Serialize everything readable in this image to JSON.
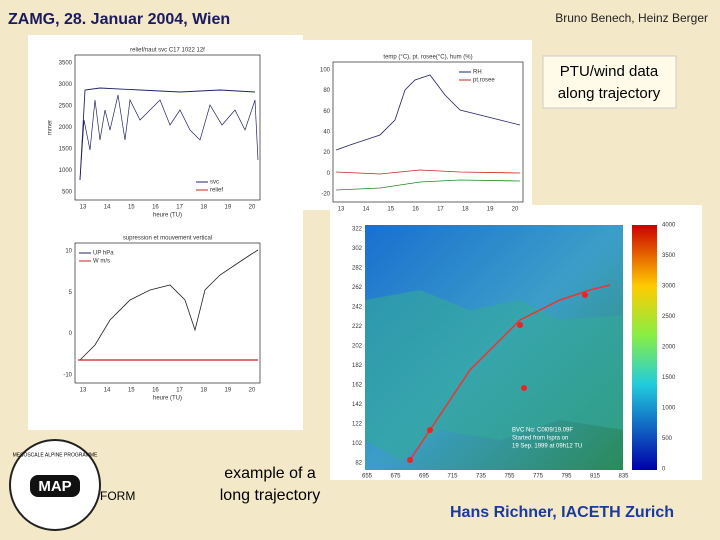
{
  "header": {
    "title": "ZAMG, 28. Januar 2004, Wien",
    "authors": "Bruno Benech, Heinz Berger"
  },
  "callout": {
    "line1": "PTU/wind data",
    "line2": "along trajectory"
  },
  "caption": {
    "line1": "example of a",
    "line2": "long trajectory"
  },
  "logo": {
    "label": "MAP",
    "ring": "MESOSCALE ALPINE PROGRAMME",
    "side": "FORM"
  },
  "footer": "Hans Richner, IACETH Zurich",
  "plots": [
    {
      "title": "relief/naut svc C17 1022 12f",
      "ylabel": "mmer",
      "xlabel": "heure (TU)",
      "yticks": [
        "3500",
        "3000",
        "2500",
        "2000",
        "1500",
        "1000",
        "500"
      ],
      "xticks": [
        "13",
        "14",
        "15",
        "16",
        "17",
        "18",
        "19",
        "20"
      ],
      "legend": [
        "svc",
        "relief"
      ]
    },
    {
      "title": "temp (°C), pt. rosee(°C), hum (%)",
      "yticks": [
        "100",
        "80",
        "60",
        "40",
        "20",
        "0",
        "-20"
      ],
      "xticks": [
        "13",
        "14",
        "15",
        "16",
        "17",
        "18",
        "19",
        "20"
      ],
      "legend": [
        "RH",
        "pt.rosee"
      ]
    },
    {
      "title": "supression et mouvement vertical",
      "xlabel": "heure (TU)",
      "yticks": [
        "10",
        "5",
        "0",
        "-10"
      ],
      "xticks": [
        "13",
        "14",
        "15",
        "16",
        "17",
        "18",
        "19",
        "20"
      ],
      "legend": [
        "UP hPa",
        "W m/s"
      ]
    }
  ],
  "map": {
    "yticks": [
      "322",
      "302",
      "282",
      "262",
      "242",
      "222",
      "202",
      "182",
      "162",
      "142",
      "122",
      "102",
      "82"
    ],
    "xticks": [
      "655",
      "675",
      "695",
      "715",
      "735",
      "755",
      "775",
      "795",
      "815",
      "835"
    ],
    "colorbar": [
      "4000",
      "3500",
      "3000",
      "2500",
      "2000",
      "1500",
      "1000",
      "500",
      "0"
    ],
    "info": [
      "BVC No: C0l09/19.09F",
      "Started from Ispra on",
      "19 Sep. 1999 at 09h12 TU"
    ]
  }
}
